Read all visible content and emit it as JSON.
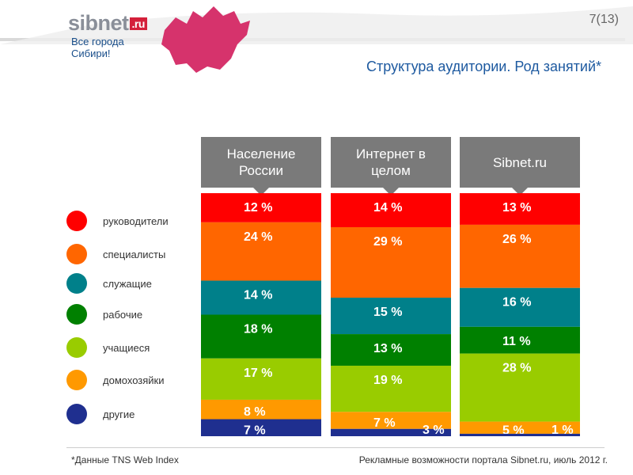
{
  "logo": {
    "brand": "sibnet",
    "suffix": ".ru"
  },
  "tagline": "Все города Сибири!",
  "page_number": "7(13)",
  "title": "Структура аудитории. Род занятий*",
  "column_headers": [
    "Население России",
    "Интернет в целом",
    "Sibnet.ru"
  ],
  "legend": [
    {
      "label": "руководители",
      "color": "#ff0000"
    },
    {
      "label": "специалисты",
      "color": "#ff6600"
    },
    {
      "label": "служащие",
      "color": "#00808a"
    },
    {
      "label": "рабочие",
      "color": "#008000"
    },
    {
      "label": "учащиеся",
      "color": "#99cc00"
    },
    {
      "label": "домохозяйки",
      "color": "#ff9900"
    },
    {
      "label": "другие",
      "color": "#1f2f8f"
    }
  ],
  "colors": {
    "header_box": "#7a7a7a",
    "title": "#1e5aa0",
    "accent": "#d4203a",
    "map": "#d6336c"
  },
  "chart_data": {
    "type": "bar",
    "stacked": true,
    "normalized_100": true,
    "categories": [
      "Население России",
      "Интернет в целом",
      "Sibnet.ru"
    ],
    "series": [
      {
        "name": "руководители",
        "values": [
          12,
          14,
          13
        ]
      },
      {
        "name": "специалисты",
        "values": [
          24,
          29,
          26
        ]
      },
      {
        "name": "служащие",
        "values": [
          14,
          15,
          16
        ]
      },
      {
        "name": "рабочие",
        "values": [
          18,
          13,
          11
        ]
      },
      {
        "name": "учащиеся",
        "values": [
          17,
          19,
          28
        ]
      },
      {
        "name": "домохозяйки",
        "values": [
          8,
          7,
          5
        ]
      },
      {
        "name": "другие",
        "values": [
          7,
          3,
          1
        ]
      }
    ],
    "value_suffix": " %",
    "legend_position": "left",
    "grid": false
  },
  "footnote": "*Данные TNS Web Index",
  "footer": "Рекламные возможности портала Sibnet.ru, июль 2012 г."
}
